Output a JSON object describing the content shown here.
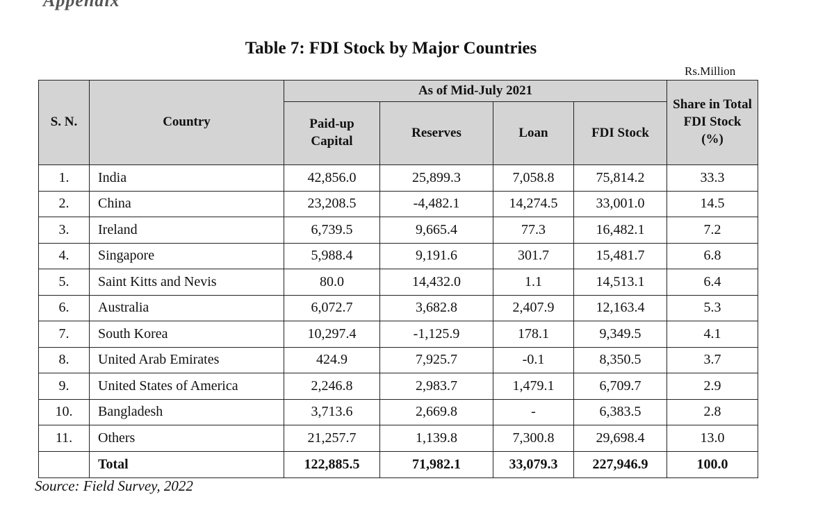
{
  "cut_heading": "Appendix",
  "title": "Table 7: FDI Stock by Major Countries",
  "unit": "Rs.Million",
  "headers": {
    "sn": "S. N.",
    "country": "Country",
    "group": "As of Mid-July 2021",
    "paid_up": "Paid-up Capital",
    "reserves": "Reserves",
    "loan": "Loan",
    "fdi_stock": "FDI Stock",
    "share": "Share in Total FDI Stock (%)"
  },
  "rows": [
    {
      "sn": "1.",
      "country": "India",
      "paid_up": "42,856.0",
      "reserves": "25,899.3",
      "loan": "7,058.8",
      "fdi_stock": "75,814.2",
      "share": "33.3"
    },
    {
      "sn": "2.",
      "country": "China",
      "paid_up": "23,208.5",
      "reserves": "-4,482.1",
      "loan": "14,274.5",
      "fdi_stock": "33,001.0",
      "share": "14.5"
    },
    {
      "sn": "3.",
      "country": "Ireland",
      "paid_up": "6,739.5",
      "reserves": "9,665.4",
      "loan": "77.3",
      "fdi_stock": "16,482.1",
      "share": "7.2"
    },
    {
      "sn": "4.",
      "country": "Singapore",
      "paid_up": "5,988.4",
      "reserves": "9,191.6",
      "loan": "301.7",
      "fdi_stock": "15,481.7",
      "share": "6.8"
    },
    {
      "sn": "5.",
      "country": "Saint Kitts and Nevis",
      "paid_up": "80.0",
      "reserves": "14,432.0",
      "loan": "1.1",
      "fdi_stock": "14,513.1",
      "share": "6.4"
    },
    {
      "sn": "6.",
      "country": "Australia",
      "paid_up": "6,072.7",
      "reserves": "3,682.8",
      "loan": "2,407.9",
      "fdi_stock": "12,163.4",
      "share": "5.3"
    },
    {
      "sn": "7.",
      "country": "South Korea",
      "paid_up": "10,297.4",
      "reserves": "-1,125.9",
      "loan": "178.1",
      "fdi_stock": "9,349.5",
      "share": "4.1"
    },
    {
      "sn": "8.",
      "country": "United Arab Emirates",
      "paid_up": "424.9",
      "reserves": "7,925.7",
      "loan": "-0.1",
      "fdi_stock": "8,350.5",
      "share": "3.7"
    },
    {
      "sn": "9.",
      "country": "United States of America",
      "paid_up": "2,246.8",
      "reserves": "2,983.7",
      "loan": "1,479.1",
      "fdi_stock": "6,709.7",
      "share": "2.9"
    },
    {
      "sn": "10.",
      "country": "Bangladesh",
      "paid_up": "3,713.6",
      "reserves": "2,669.8",
      "loan": "-",
      "fdi_stock": "6,383.5",
      "share": "2.8"
    },
    {
      "sn": "11.",
      "country": "Others",
      "paid_up": "21,257.7",
      "reserves": "1,139.8",
      "loan": "7,300.8",
      "fdi_stock": "29,698.4",
      "share": "13.0"
    }
  ],
  "total": {
    "sn": "",
    "country": "Total",
    "paid_up": "122,885.5",
    "reserves": "71,982.1",
    "loan": "33,079.3",
    "fdi_stock": "227,946.9",
    "share": "100.0"
  },
  "source": "Source: Field Survey, 2022"
}
